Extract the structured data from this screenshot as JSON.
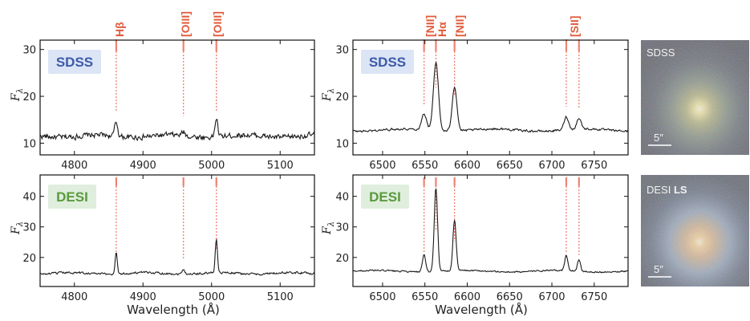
{
  "figure": {
    "xlabel": "Wavelength (Å)",
    "ylabel_main": "F",
    "ylabel_sub": "λ",
    "colors": {
      "spectrum": "#1a1a1a",
      "line_marker": "#f08070",
      "line_label": "#e05a3a",
      "sdss_box": "#dbe5f5",
      "sdss_text": "#3d5aa8",
      "desi_box": "#dfeedd",
      "desi_text": "#5a9a3c"
    }
  },
  "line_labels": {
    "hbeta": "Hβ",
    "oiii_a": "[OIII]",
    "oiii_b": "[OIII]",
    "nii_a": "[NII]",
    "halpha": "Hα",
    "nii_b": "[NII]",
    "sii": "[SII]"
  },
  "images": {
    "top": {
      "label": "SDSS",
      "scale": "5″"
    },
    "bottom": {
      "label_a": "DESI ",
      "label_b": "LS",
      "scale": "5″"
    }
  },
  "chart_data": [
    {
      "id": "sdss_blue",
      "type": "line",
      "badge": "SDSS",
      "xlim": [
        4750,
        5150
      ],
      "ylim": [
        7.5,
        32
      ],
      "xticks": [
        4800,
        4900,
        5000,
        5100
      ],
      "yticks": [
        10,
        20,
        30
      ],
      "continuum": 11.5,
      "noise": 0.9,
      "lines": [
        {
          "x": 4861,
          "peak": 3.0,
          "w": 2.2
        },
        {
          "x": 4959,
          "peak": 0.8,
          "w": 2.2
        },
        {
          "x": 5007,
          "peak": 4.0,
          "w": 2.0
        }
      ],
      "markers": [
        4861,
        4959,
        5007
      ],
      "marker_labels": [
        "hbeta",
        "oiii_a",
        "oiii_b"
      ]
    },
    {
      "id": "sdss_red",
      "type": "line",
      "badge": "SDSS",
      "xlim": [
        6465,
        6790
      ],
      "ylim": [
        7.5,
        32
      ],
      "xticks": [
        6500,
        6550,
        6600,
        6650,
        6700,
        6750
      ],
      "yticks": [
        10,
        20,
        30
      ],
      "continuum": 12.8,
      "noise": 0.35,
      "lines": [
        {
          "x": 6549,
          "peak": 3.5,
          "w": 2.8
        },
        {
          "x": 6563,
          "peak": 14.5,
          "w": 3.0
        },
        {
          "x": 6585,
          "peak": 9.5,
          "w": 2.8
        },
        {
          "x": 6717,
          "peak": 2.8,
          "w": 2.6
        },
        {
          "x": 6732,
          "peak": 2.3,
          "w": 2.6
        }
      ],
      "markers": [
        6549,
        6563,
        6585,
        6717,
        6732
      ],
      "marker_labels": [
        "nii_a",
        "halpha",
        "nii_b",
        "sii",
        ""
      ]
    },
    {
      "id": "desi_blue",
      "type": "line",
      "badge": "DESI",
      "xlim": [
        4750,
        5150
      ],
      "ylim": [
        10.5,
        47
      ],
      "xticks": [
        4800,
        4900,
        5000,
        5100
      ],
      "yticks": [
        20,
        30,
        40
      ],
      "continuum": 14.8,
      "noise": 0.55,
      "lines": [
        {
          "x": 4861,
          "peak": 7.0,
          "w": 1.6
        },
        {
          "x": 4959,
          "peak": 1.6,
          "w": 2.0
        },
        {
          "x": 5007,
          "peak": 11.0,
          "w": 1.6
        }
      ],
      "markers": [
        4861,
        4959,
        5007
      ],
      "marker_labels": [
        "",
        "",
        ""
      ]
    },
    {
      "id": "desi_red",
      "type": "line",
      "badge": "DESI",
      "xlim": [
        6465,
        6790
      ],
      "ylim": [
        10.5,
        47
      ],
      "xticks": [
        6500,
        6550,
        6600,
        6650,
        6700,
        6750
      ],
      "yticks": [
        20,
        30,
        40
      ],
      "continuum": 15.5,
      "noise": 0.35,
      "lines": [
        {
          "x": 6549,
          "peak": 5.5,
          "w": 1.9
        },
        {
          "x": 6563,
          "peak": 27.5,
          "w": 2.0
        },
        {
          "x": 6585,
          "peak": 16.5,
          "w": 1.9
        },
        {
          "x": 6717,
          "peak": 5.0,
          "w": 1.8
        },
        {
          "x": 6732,
          "peak": 3.8,
          "w": 1.8
        }
      ],
      "markers": [
        6549,
        6563,
        6585,
        6717,
        6732
      ],
      "marker_labels": [
        "",
        "",
        "",
        "",
        ""
      ]
    }
  ]
}
